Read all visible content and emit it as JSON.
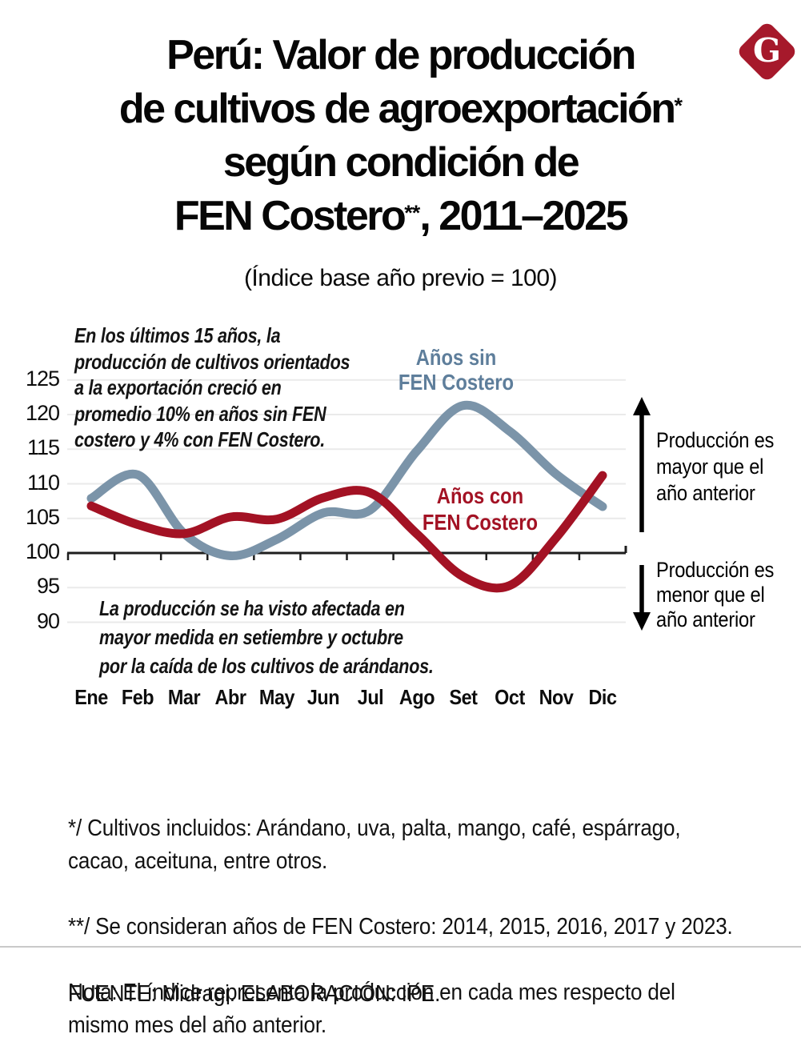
{
  "branding": {
    "logo_letter": "G",
    "logo_color": "#A6192B"
  },
  "title": {
    "lines": [
      {
        "text": "Perú: Valor de producción",
        "sup": "",
        "tail": ""
      },
      {
        "text": "de cultivos de agroexportación",
        "sup": "*",
        "tail": ""
      },
      {
        "text": "según condición de",
        "sup": "",
        "tail": ""
      },
      {
        "text": "FEN Costero",
        "sup": "**",
        "tail": ", 2011–2025"
      }
    ]
  },
  "subtitle": "(Índice base año previo = 100)",
  "annotations": {
    "top": "En los últimos 15 años, la\nproducción de cultivos orientados\na la exportación creció en\npromedio 10% en años sin FEN\ncostero y 4% con FEN Costero.",
    "bottom": "La producción se ha visto afectada en\nmayor medida en setiembre y octubre\npor la caída de los cultivos de arándanos.",
    "side_upper": "Producción es\nmayor que el\naño anterior",
    "side_lower": "Producción es\nmenor que el\naño anterior"
  },
  "chart_data": {
    "type": "line",
    "title": "Perú: Valor de producción de cultivos de agroexportación según condición de FEN Costero, 2011–2025",
    "subtitle": "Índice base año previo = 100",
    "categories": [
      "Ene",
      "Feb",
      "Mar",
      "Abr",
      "May",
      "Jun",
      "Jul",
      "Ago",
      "Set",
      "Oct",
      "Nov",
      "Dic"
    ],
    "series": [
      {
        "name": "Años sin FEN Costero",
        "label": "Años sin\nFEN Costero",
        "color": "#7B94A9",
        "label_color": "#5E7E9B",
        "values": [
          107.9,
          111.3,
          102.8,
          99.6,
          102.0,
          105.8,
          106.2,
          114.7,
          121.3,
          117.6,
          111.4,
          106.7
        ]
      },
      {
        "name": "Años con FEN Costero",
        "label": "Años con\nFEN Costero",
        "color": "#A31224",
        "label_color": "#A31224",
        "values": [
          106.8,
          104.1,
          102.8,
          105.2,
          104.9,
          108.0,
          108.7,
          102.8,
          96.6,
          95.3,
          102.2,
          111.2
        ]
      }
    ],
    "xlabel": "",
    "ylabel": "",
    "yticks": [
      125,
      120,
      115,
      110,
      105,
      100,
      95,
      90
    ],
    "ylim": [
      88,
      127
    ],
    "baseline": 100,
    "grid": "horizontal-light",
    "legend_position": "inline-labels"
  },
  "footnotes": [
    "*/ Cultivos incluidos: Arándano, uva, palta, mango, café, espárrago,\ncacao, aceituna, entre otros.",
    "**/ Se consideran años de FEN Costero: 2014, 2015, 2016, 2017 y 2023.",
    "Nota: El índice representa la producción en cada mes respecto del\nmismo mes del año anterior."
  ],
  "source": "FUENTE: Midragi. ELABORACIÓN: IPE."
}
